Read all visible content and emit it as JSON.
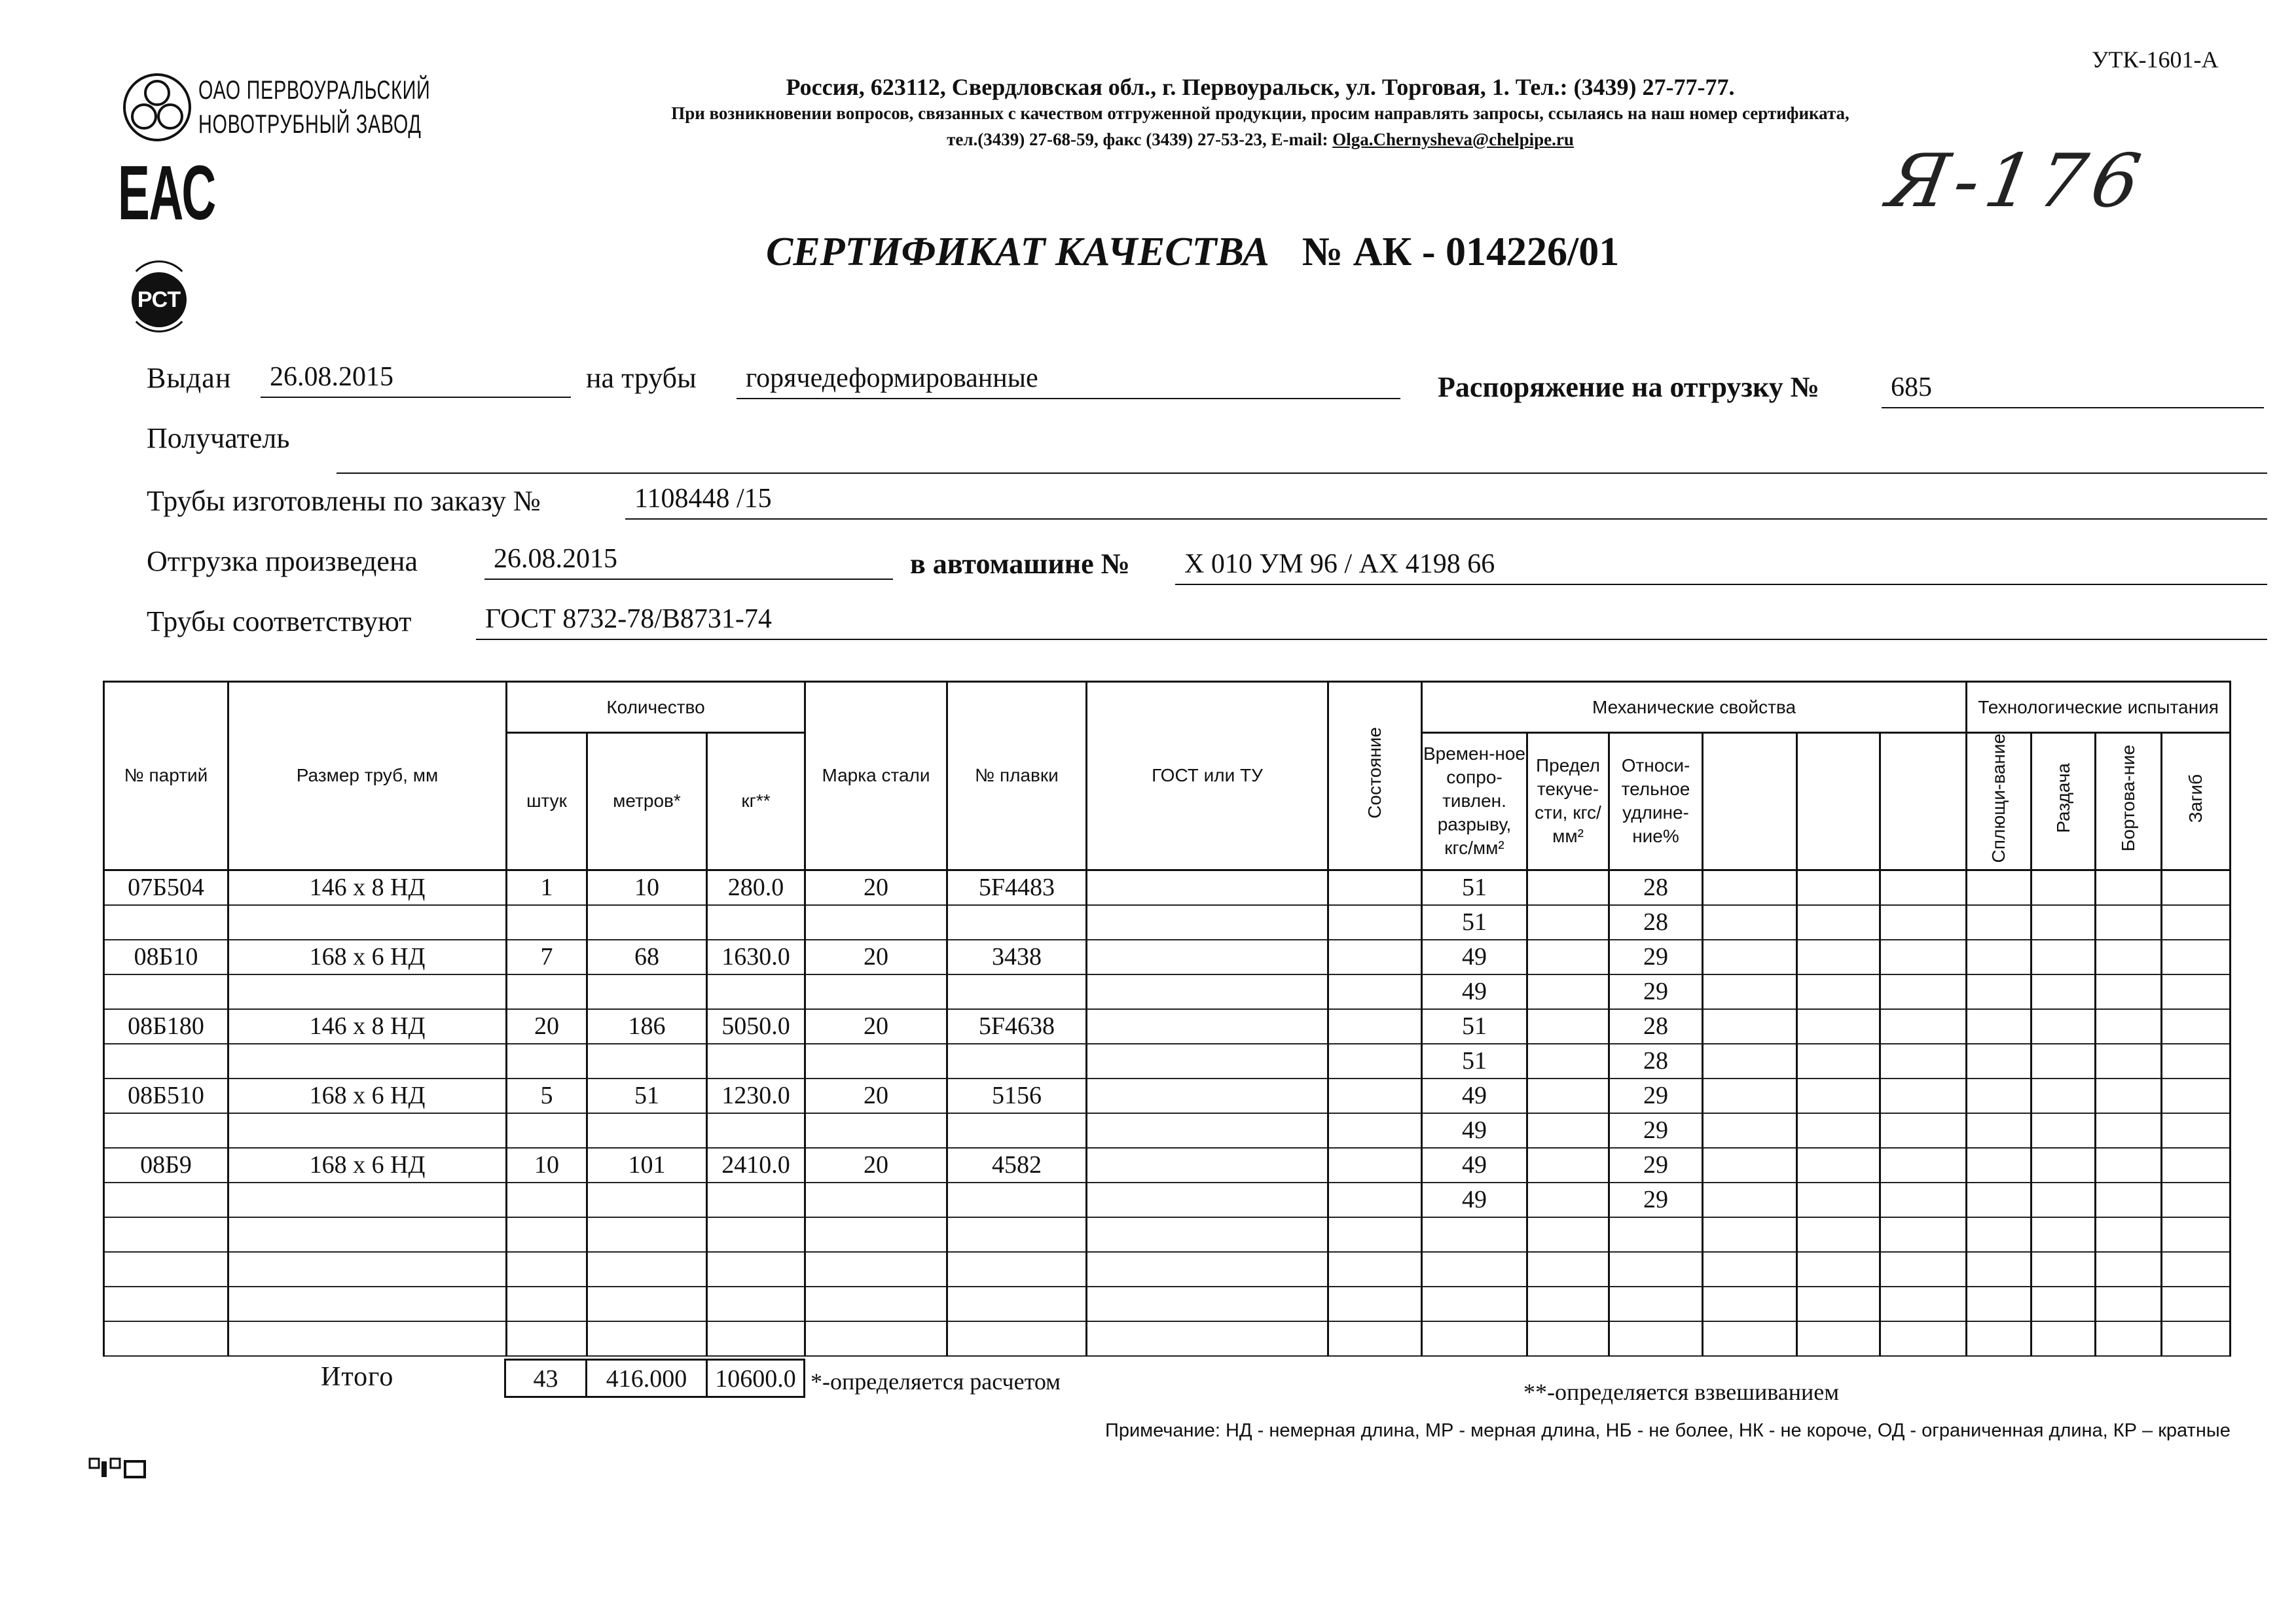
{
  "form_code": "УТК-1601-А",
  "company": {
    "name_line1": "ОАО ПЕРВОУРАЛЬСКИЙ",
    "name_line2": "НОВОТРУБНЫЙ ЗАВОД"
  },
  "address": {
    "line1": "Россия, 623112, Свердловская обл., г. Первоуральск, ул. Торговая, 1. Тел.: (3439) 27-77-77.",
    "line2": "При возникновении вопросов, связанных с качеством отгруженной продукции, просим направлять запросы, ссылаясь на наш номер сертификата,",
    "line3_prefix": "тел.(3439) 27-68-59, факс (3439) 27-53-23,  E-mail: ",
    "email": "Olga.Chernysheva@chelpipe.ru"
  },
  "marks": {
    "eac": "ЕАС",
    "pct": "РСТ",
    "handwritten": "Я-176"
  },
  "title": {
    "text": "СЕРТИФИКАТ КАЧЕСТВА",
    "number": "№  АК -  014226/01"
  },
  "form": {
    "issued_label": "Выдан",
    "issued_value": "26.08.2015",
    "pipes_label": "на трубы",
    "pipes_value": "горячедеформированные",
    "order_label": "Распоряжение на отгрузку №",
    "order_value": "685",
    "recipient_label": "Получатель",
    "recipient_value": "",
    "made_label": "Трубы изготовлены по заказу №",
    "made_value": "1108448   /15",
    "shipped_label": "Отгрузка произведена",
    "shipped_value": "26.08.2015",
    "vehicle_label": "в автомашине №",
    "vehicle_value": "Х 010 УМ 96 / АХ 4198 66",
    "standard_label": "Трубы соответствуют",
    "standard_value": "ГОСТ 8732-78/В8731-74"
  },
  "table": {
    "headers": {
      "party": "№ партий",
      "size": "Размер труб, мм",
      "quantity": "Количество",
      "pieces": "штук",
      "meters": "метров*",
      "kg": "кг**",
      "steel": "Марка стали",
      "heat": "№ плавки",
      "gost": "ГОСТ или ТУ",
      "state": "Состояние",
      "mech": "Механические свойства",
      "tensile": "Времен-ное сопро-тивлен. разрыву, кгс/мм²",
      "yield": "Предел текуче-сти, кгс/мм²",
      "elong": "Относи-тельное удлине-ние%",
      "tech": "Технологические испытания",
      "flatten": "Сплющи-вание",
      "expand": "Раздача",
      "flange": "Бортова-ние",
      "bend": "Загиб"
    },
    "parties": [
      {
        "party": "07Б504",
        "size": "146 x 8 НД",
        "pieces": "1",
        "meters": "10",
        "kg": "280.0",
        "steel": "20",
        "heat": "5F4483"
      },
      {
        "party": "08Б10",
        "size": "168 x 6 НД",
        "pieces": "7",
        "meters": "68",
        "kg": "1630.0",
        "steel": "20",
        "heat": "3438"
      },
      {
        "party": "08Б180",
        "size": "146 x 8 НД",
        "pieces": "20",
        "meters": "186",
        "kg": "5050.0",
        "steel": "20",
        "heat": "5F4638"
      },
      {
        "party": "08Б510",
        "size": "168 x 6 НД",
        "pieces": "5",
        "meters": "51",
        "kg": "1230.0",
        "steel": "20",
        "heat": "5156"
      },
      {
        "party": "08Б9",
        "size": "168 x 6 НД",
        "pieces": "10",
        "meters": "101",
        "kg": "2410.0",
        "steel": "20",
        "heat": "4582"
      }
    ],
    "mech_rows": [
      {
        "tensile": "51",
        "elong": "28"
      },
      {
        "tensile": "51",
        "elong": "28"
      },
      {
        "tensile": "49",
        "elong": "29"
      },
      {
        "tensile": "49",
        "elong": "29"
      },
      {
        "tensile": "51",
        "elong": "28"
      },
      {
        "tensile": "51",
        "elong": "28"
      },
      {
        "tensile": "49",
        "elong": "29"
      },
      {
        "tensile": "49",
        "elong": "29"
      },
      {
        "tensile": "49",
        "elong": "29"
      },
      {
        "tensile": "49",
        "elong": "29"
      }
    ],
    "totals": {
      "label": "Итого",
      "pieces": "43",
      "meters": "416.000",
      "kg": "10600.0"
    }
  },
  "footnotes": {
    "calc": "*-определяется расчетом",
    "weigh": "**-определяется взвешиванием",
    "note": "Примечание: НД - немерная длина, МР - мерная длина, НБ - не более, НК - не короче, ОД - ограниченная длина, КР – кратные"
  }
}
